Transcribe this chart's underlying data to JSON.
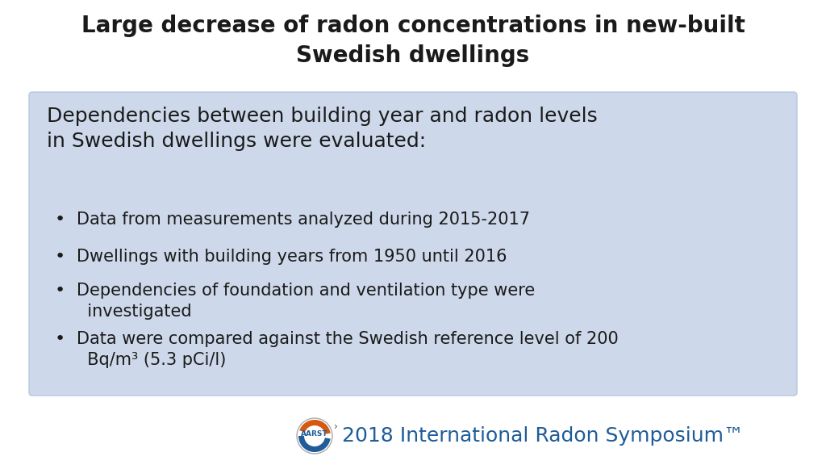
{
  "title_line1": "Large decrease of radon concentrations in new-built",
  "title_line2": "Swedish dwellings",
  "title_fontsize": 20,
  "title_fontweight": "bold",
  "bg_color": "#ffffff",
  "box_color": "#cdd8ea",
  "box_edge_color": "#b8c8df",
  "header_text": "Dependencies between building year and radon levels\nin Swedish dwellings were evaluated:",
  "header_fontsize": 18,
  "bullets": [
    "Data from measurements analyzed during 2015-2017",
    "Dwellings with building years from 1950 until 2016",
    "Dependencies of foundation and ventilation type were\n    investigated",
    "Data were compared against the Swedish reference level of 200\n    Bq/m³ (5.3 pCi/l)"
  ],
  "bullet_fontsize": 15,
  "footer_text": "2018 International Radon Symposium™",
  "footer_color": "#1f5c99",
  "footer_fontsize": 18,
  "text_color": "#1a1a1a"
}
